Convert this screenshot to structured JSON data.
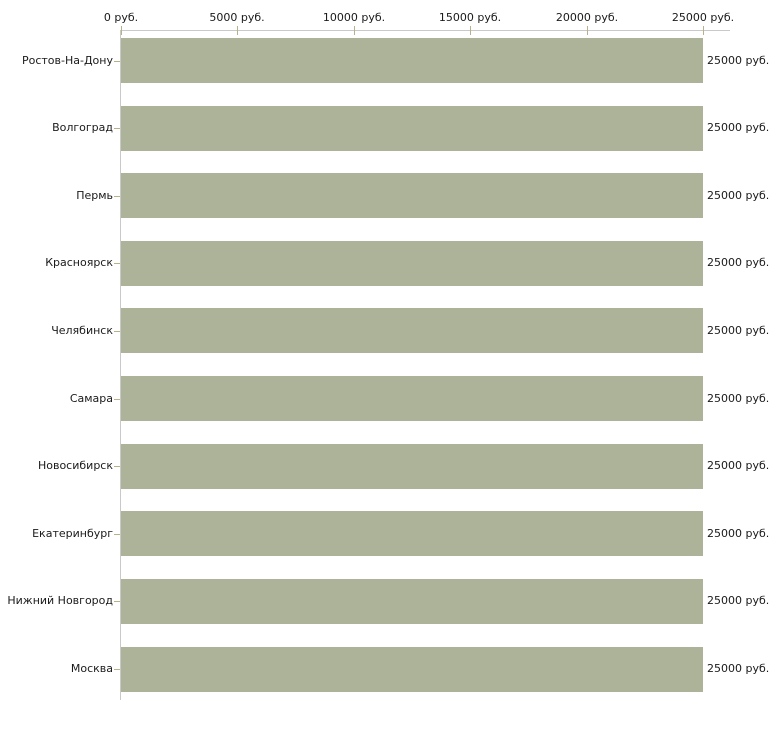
{
  "chart_data": {
    "type": "bar",
    "orientation": "horizontal",
    "title": "",
    "xlabel": "",
    "ylabel": "",
    "categories": [
      "Ростов-На-Дону",
      "Волгоград",
      "Пермь",
      "Красноярск",
      "Челябинск",
      "Самара",
      "Новосибирск",
      "Екатеринбург",
      "Нижний Новгород",
      "Москва"
    ],
    "values": [
      25000,
      25000,
      25000,
      25000,
      25000,
      25000,
      25000,
      25000,
      25000,
      25000
    ],
    "value_labels": [
      "25000 руб.",
      "25000 руб.",
      "25000 руб.",
      "25000 руб.",
      "25000 руб.",
      "25000 руб.",
      "25000 руб.",
      "25000 руб.",
      "25000 руб.",
      "25000 руб."
    ],
    "x_tick_values": [
      0,
      5000,
      10000,
      15000,
      20000,
      25000
    ],
    "x_tick_labels": [
      "0 руб.",
      "5000 руб.",
      "10000 руб.",
      "15000 руб.",
      "20000 руб.",
      "25000 руб."
    ],
    "xlim": [
      0,
      25000
    ],
    "grid": false,
    "legend": false,
    "colors": {
      "bar": "#adb399",
      "axis_line": "#c9c9c9",
      "tick_mark": "#b8b18a",
      "text": "#1a1a1a",
      "background": "#ffffff"
    }
  }
}
